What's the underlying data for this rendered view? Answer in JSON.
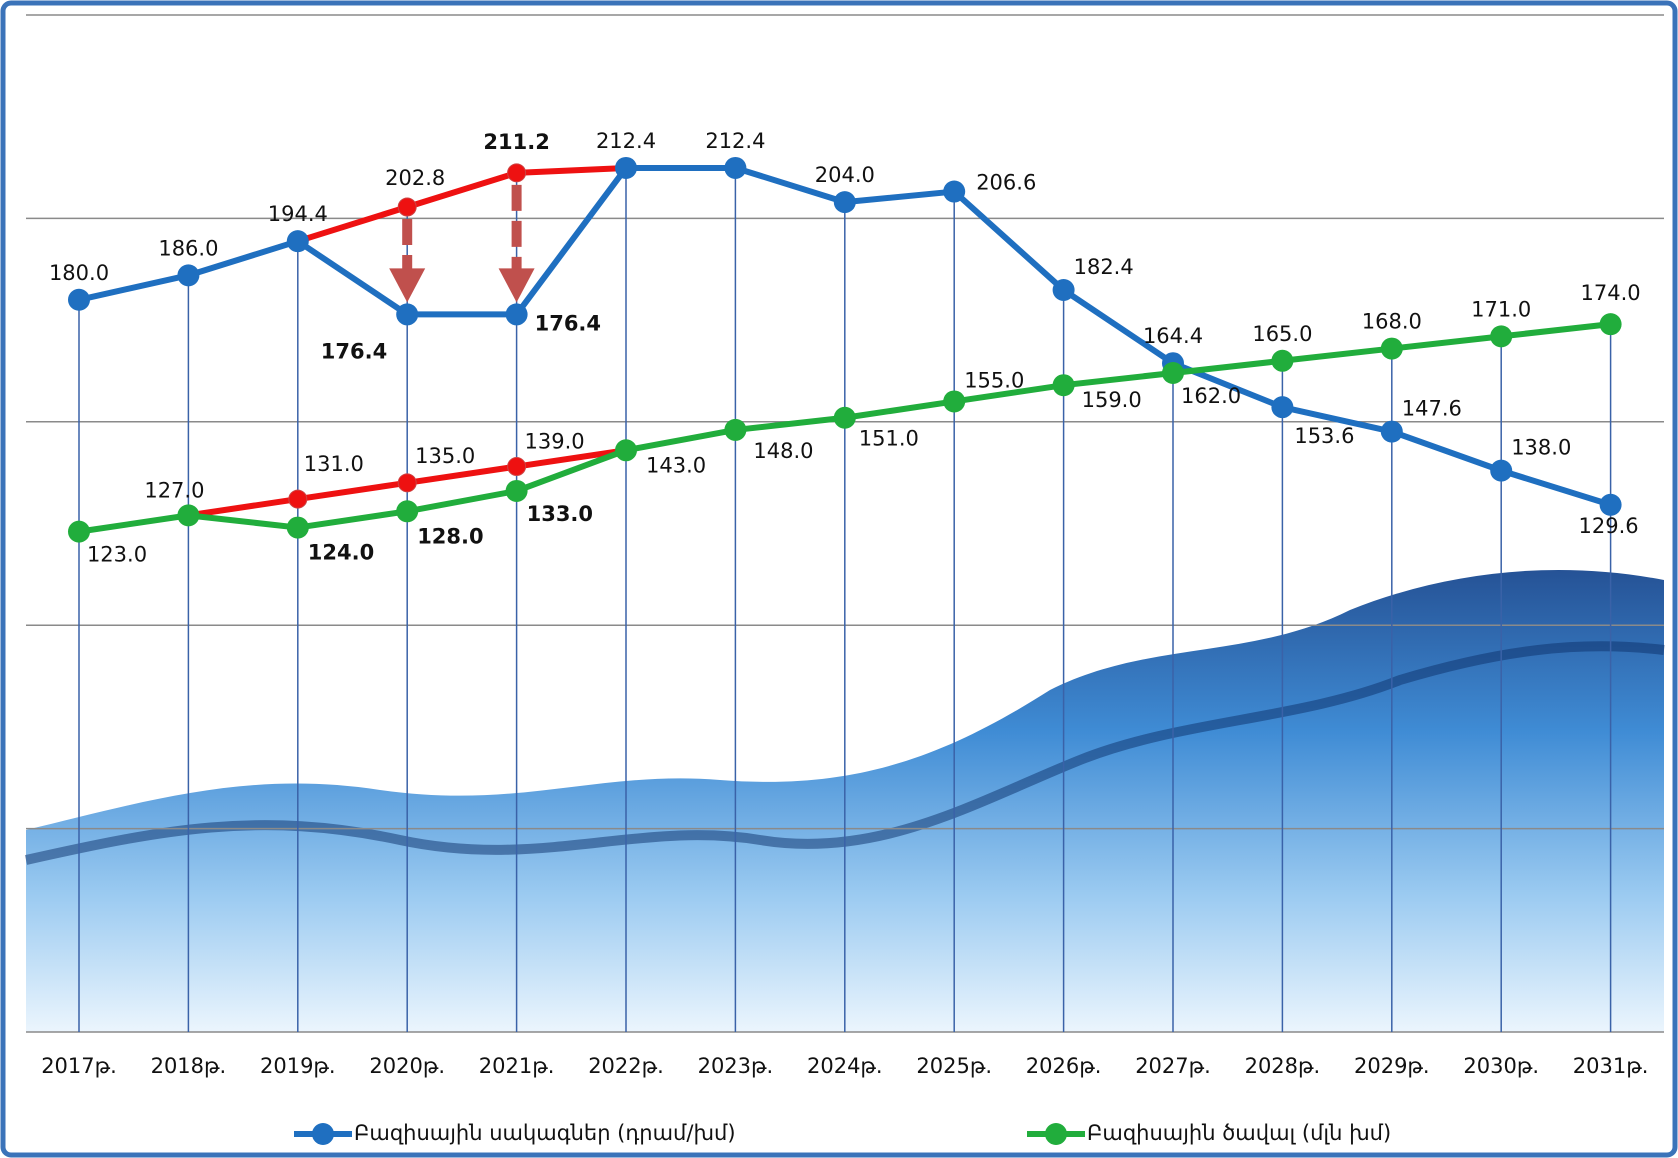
{
  "chart_data": {
    "type": "line",
    "categories": [
      "2017թ.",
      "2018թ.",
      "2019թ.",
      "2020թ.",
      "2021թ.",
      "2022թ.",
      "2023թ.",
      "2024թ.",
      "2025թ.",
      "2026թ.",
      "2027թ.",
      "2028թ.",
      "2029թ.",
      "2030թ.",
      "2031թ."
    ],
    "ylim": [
      0,
      250
    ],
    "yticks": [
      0,
      50,
      100,
      150,
      200,
      250
    ],
    "grid": true,
    "series": [
      {
        "name": "Բազիսային սակագներ (դրամ/խմ)",
        "color": "#1f6fc0",
        "values": [
          180.0,
          186.0,
          194.4,
          176.4,
          176.4,
          212.4,
          212.4,
          204.0,
          206.6,
          182.4,
          164.4,
          153.6,
          147.6,
          138.0,
          129.6
        ],
        "value_labels": [
          "180.0",
          "186.0",
          "194.4",
          "176.4",
          "176.4",
          "212.4",
          "212.4",
          "204.0",
          "206.6",
          "182.4",
          "164.4",
          "153.6",
          "147.6",
          "138.0",
          "129.6"
        ],
        "bold_labels": [
          3,
          4
        ]
      },
      {
        "name": "Բազիսային ծավալ (մլն խմ)",
        "color": "#21ad3c",
        "values": [
          123.0,
          127.0,
          124.0,
          128.0,
          133.0,
          143.0,
          148.0,
          151.0,
          155.0,
          159.0,
          162.0,
          165.0,
          168.0,
          171.0,
          174.0
        ],
        "value_labels": [
          "123.0",
          "127.0",
          "124.0",
          "128.0",
          "133.0",
          "143.0",
          "148.0",
          "151.0",
          "155.0",
          "159.0",
          "162.0",
          "165.0",
          "168.0",
          "171.0",
          "174.0"
        ],
        "bold_labels": [
          2,
          3,
          4
        ]
      },
      {
        "color": "#ee1111",
        "values": [
          null,
          null,
          194.4,
          202.8,
          211.2,
          212.4,
          null,
          null,
          null,
          null,
          null,
          null,
          null,
          null,
          null
        ],
        "value_labels": [
          null,
          null,
          null,
          "202.8",
          "211.2",
          null,
          null,
          null,
          null,
          null,
          null,
          null,
          null,
          null,
          null
        ],
        "bold_labels": [
          4
        ]
      },
      {
        "color": "#ee1111",
        "values": [
          null,
          127.0,
          131.0,
          135.0,
          139.0,
          143.0,
          null,
          null,
          null,
          null,
          null,
          null,
          null,
          null,
          null
        ],
        "value_labels": [
          null,
          null,
          "131.0",
          "135.0",
          "139.0",
          null,
          null,
          null,
          null,
          null,
          null,
          null,
          null,
          null,
          null
        ],
        "bold_labels": []
      }
    ]
  }
}
